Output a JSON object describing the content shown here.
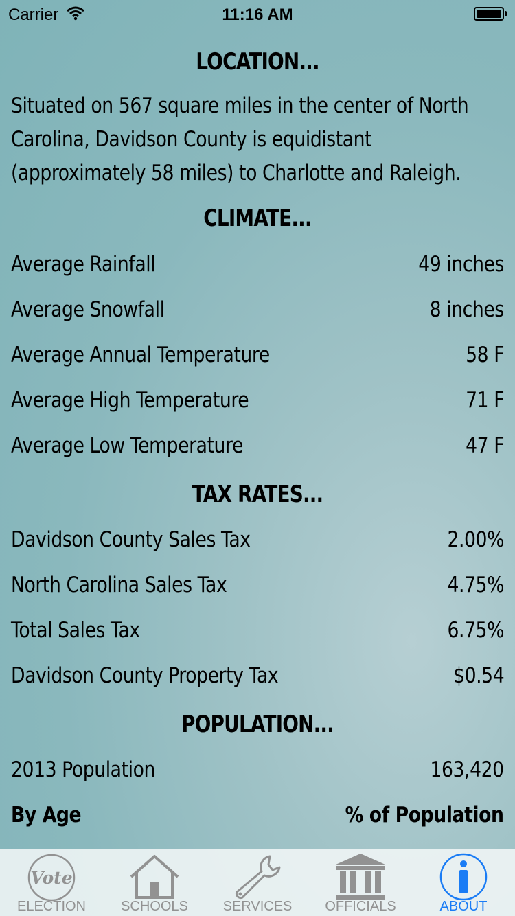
{
  "status_bar": {
    "carrier": "Carrier",
    "time": "11:16 AM"
  },
  "sections": {
    "location_title": "LOCATION...",
    "location_lines": [
      "Situated on 567 square miles in the center of North",
      "Carolina, Davidson County is equidistant",
      "(approximately 58 miles) to Charlotte and Raleigh."
    ],
    "climate_title": "CLIMATE...",
    "climate": [
      {
        "label": "Average Rainfall",
        "value": "49 inches"
      },
      {
        "label": "Average Snowfall",
        "value": "8 inches"
      },
      {
        "label": "Average Annual Temperature",
        "value": "58 F"
      },
      {
        "label": "Average High Temperature",
        "value": "71 F"
      },
      {
        "label": "Average Low Temperature",
        "value": "47 F"
      }
    ],
    "tax_title": "TAX RATES...",
    "tax": [
      {
        "label": "Davidson County Sales Tax",
        "value": "2.00%"
      },
      {
        "label": "North Carolina Sales Tax",
        "value": "4.75%"
      },
      {
        "label": "Total Sales Tax",
        "value": "6.75%"
      },
      {
        "label": "Davidson County Property Tax",
        "value": "$0.54"
      }
    ],
    "population_title": "POPULATION...",
    "population": [
      {
        "label": "2013 Population",
        "value": "163,420"
      }
    ],
    "age_header": {
      "label": "By Age",
      "value": "% of Population"
    }
  },
  "tabs": [
    {
      "label": "ELECTION",
      "icon": "vote-icon",
      "active": false
    },
    {
      "label": "SCHOOLS",
      "icon": "house-icon",
      "active": false
    },
    {
      "label": "SERVICES",
      "icon": "wrench-icon",
      "active": false
    },
    {
      "label": "OFFICIALS",
      "icon": "government-building-icon",
      "active": false
    },
    {
      "label": "ABOUT",
      "icon": "info-icon",
      "active": true
    }
  ],
  "vote_icon_text": "Vote",
  "colors": {
    "active_tab": "#1a7cf5",
    "inactive_tab": "#929292"
  }
}
